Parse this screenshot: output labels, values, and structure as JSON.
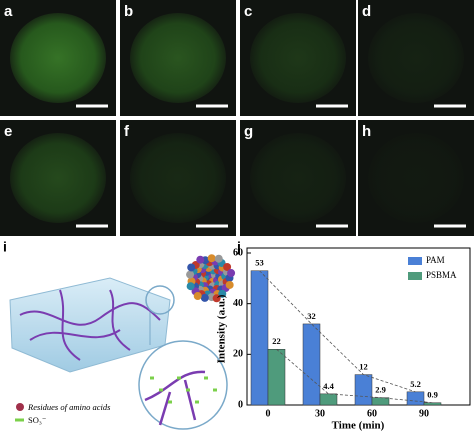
{
  "image_panels": [
    "a",
    "b",
    "c",
    "d",
    "e",
    "f",
    "g",
    "h"
  ],
  "schematic": {
    "label": "i",
    "legend": [
      "Residues of amino acids",
      "SO₃⁻"
    ]
  },
  "chart_label": "j",
  "chart_data": {
    "type": "bar",
    "y_label": "Intensity (a.u.)",
    "x_label": "Time (min)",
    "categories": [
      "0",
      "30",
      "60",
      "90"
    ],
    "series": [
      {
        "name": "PAM",
        "color": "#4a80d6",
        "values": [
          53,
          32,
          12,
          5.2
        ]
      },
      {
        "name": "PSBMA",
        "color": "#4f9b7c",
        "values": [
          22,
          4.4,
          2.9,
          0.9
        ]
      }
    ],
    "ylim": [
      0,
      60
    ],
    "yticks": [
      0,
      20,
      40,
      60
    ],
    "legend": "upper right",
    "trend_lines": true
  }
}
